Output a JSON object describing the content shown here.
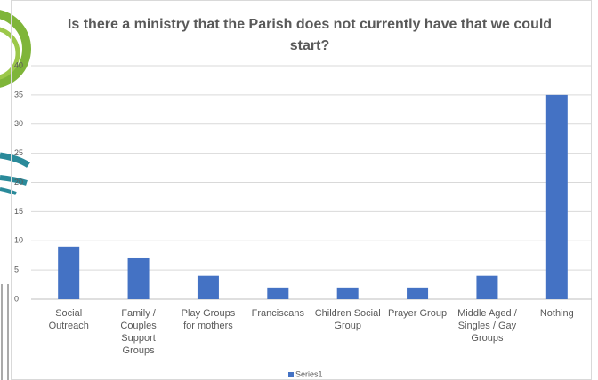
{
  "chart_data": {
    "type": "bar",
    "title": "Is there a ministry that the Parish does not currently have that we could start?",
    "categories": [
      "Social Outreach",
      "Family / Couples Support Groups",
      "Play Groups for mothers",
      "Franciscans",
      "Children Social Group",
      "Prayer Group",
      "Middle Aged / Singles / Gay Groups",
      "Nothing"
    ],
    "series": [
      {
        "name": "Series1",
        "color": "#4472c4",
        "values": [
          9,
          7,
          4,
          2,
          2,
          2,
          4,
          35
        ]
      }
    ],
    "ylim": [
      0,
      40
    ],
    "yticks": [
      0,
      5,
      10,
      15,
      20,
      25,
      30,
      35,
      40
    ],
    "grid": true,
    "legend": "bottom"
  }
}
